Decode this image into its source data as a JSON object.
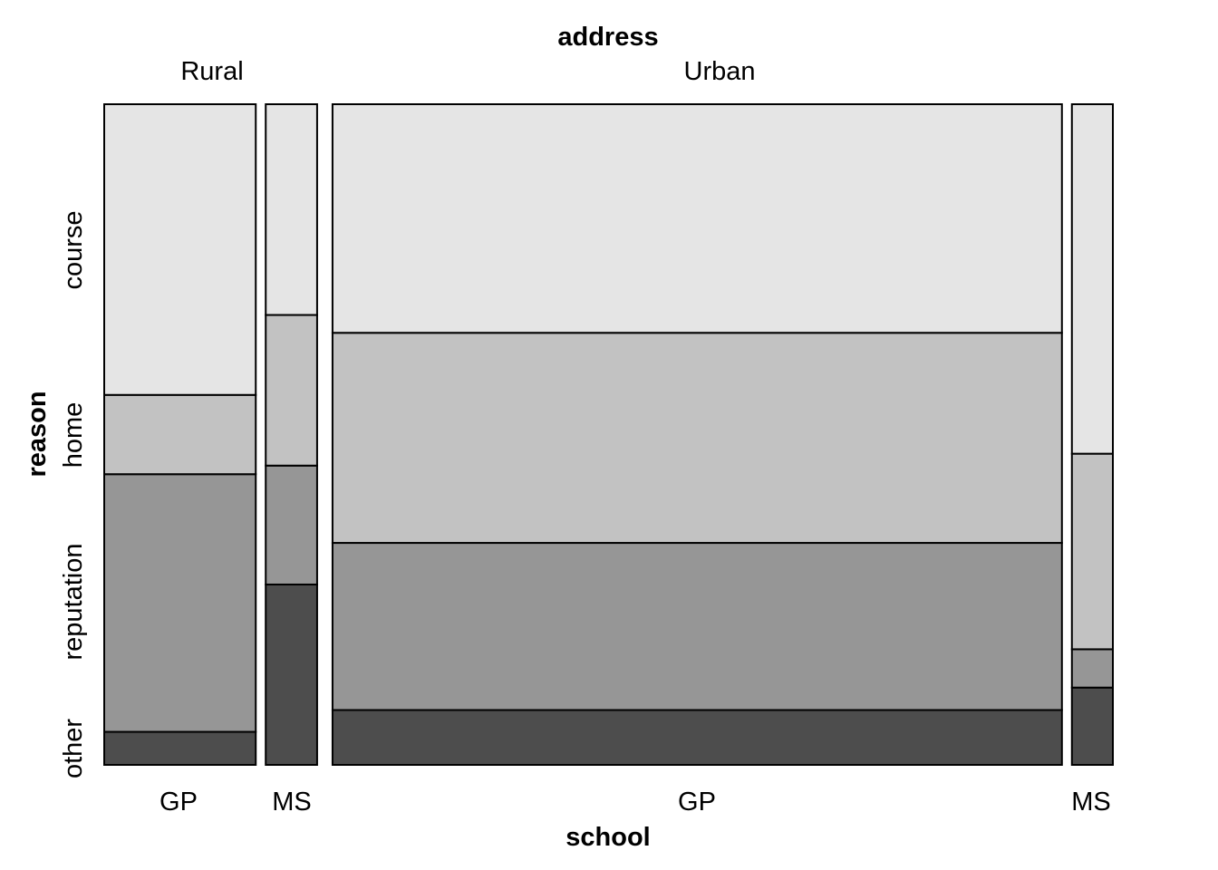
{
  "chart_data": {
    "type": "mosaic",
    "x_title": "school",
    "y_title": "reason",
    "top_title": "address",
    "address_levels": [
      "Rural",
      "Urban"
    ],
    "cells": [
      {
        "address": "Rural",
        "school": "GP",
        "share": 0.1557
      },
      {
        "address": "Rural",
        "school": "MS",
        "share": 0.0528
      },
      {
        "address": "Urban",
        "school": "GP",
        "share": 0.7494
      },
      {
        "address": "Urban",
        "school": "MS",
        "share": 0.0421
      }
    ],
    "reason_levels": [
      "other",
      "reputation",
      "home",
      "course"
    ],
    "colors": {
      "other": "#4d4d4d",
      "reputation": "#969696",
      "home": "#c2c2c2",
      "course": "#e5e5e5",
      "border": "#000000"
    },
    "proportions": [
      {
        "address": "Rural",
        "school": "GP",
        "values": {
          "other": 0.05,
          "reputation": 0.39,
          "home": 0.12,
          "course": 0.44
        }
      },
      {
        "address": "Rural",
        "school": "MS",
        "values": {
          "other": 0.273,
          "reputation": 0.18,
          "home": 0.228,
          "course": 0.319
        }
      },
      {
        "address": "Urban",
        "school": "GP",
        "values": {
          "other": 0.083,
          "reputation": 0.253,
          "home": 0.318,
          "course": 0.346
        }
      },
      {
        "address": "Urban",
        "school": "MS",
        "values": {
          "other": 0.117,
          "reputation": 0.058,
          "home": 0.296,
          "course": 0.529
        }
      }
    ]
  }
}
